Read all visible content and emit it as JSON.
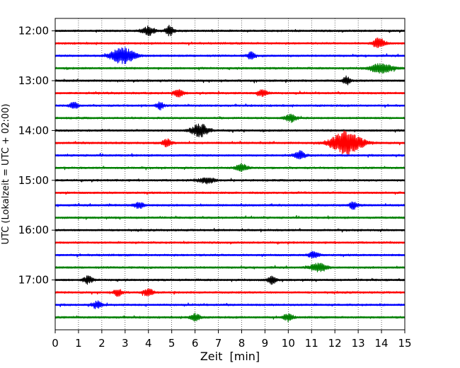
{
  "chart_data": {
    "type": "line",
    "chart_kind": "seismic helicorder",
    "xlabel": "Zeit  [min]",
    "ylabel": "UTC (Lokalzeit = UTC + 02:00)",
    "xlim": [
      0,
      15
    ],
    "x_ticks": [
      0,
      1,
      2,
      3,
      4,
      5,
      6,
      7,
      8,
      9,
      10,
      11,
      12,
      13,
      14,
      15
    ],
    "ylim_hours": [
      11.75,
      18.0
    ],
    "y_ticks": [
      {
        "label": "12:00",
        "hour": 12.0
      },
      {
        "label": "13:00",
        "hour": 13.0
      },
      {
        "label": "14:00",
        "hour": 14.0
      },
      {
        "label": "15:00",
        "hour": 15.0
      },
      {
        "label": "16:00",
        "hour": 16.0
      },
      {
        "label": "17:00",
        "hour": 17.0
      }
    ],
    "grid": "vertical dotted at each minute",
    "color_cycle": [
      "#000000",
      "#ff0000",
      "#0000ff",
      "#008000"
    ],
    "trace_interval_minutes": 15,
    "trace_start_times": [
      "12:00",
      "12:15",
      "12:30",
      "12:45",
      "13:00",
      "13:15",
      "13:30",
      "13:45",
      "14:00",
      "14:15",
      "14:30",
      "14:45",
      "15:00",
      "15:15",
      "15:30",
      "15:45",
      "16:00",
      "16:15",
      "16:30",
      "16:45",
      "17:00",
      "17:15",
      "17:30",
      "17:45"
    ],
    "events": [
      {
        "trace": 0,
        "minute": 4.0,
        "amplitude": 0.35,
        "width": 0.4
      },
      {
        "trace": 0,
        "minute": 4.9,
        "amplitude": 0.4,
        "width": 0.25
      },
      {
        "trace": 1,
        "minute": 13.9,
        "amplitude": 0.45,
        "width": 0.35
      },
      {
        "trace": 2,
        "minute": 2.9,
        "amplitude": 0.7,
        "width": 0.7
      },
      {
        "trace": 2,
        "minute": 8.4,
        "amplitude": 0.3,
        "width": 0.25
      },
      {
        "trace": 3,
        "minute": 14.0,
        "amplitude": 0.4,
        "width": 0.7
      },
      {
        "trace": 4,
        "minute": 12.5,
        "amplitude": 0.4,
        "width": 0.2
      },
      {
        "trace": 5,
        "minute": 5.3,
        "amplitude": 0.3,
        "width": 0.3
      },
      {
        "trace": 5,
        "minute": 8.9,
        "amplitude": 0.3,
        "width": 0.3
      },
      {
        "trace": 6,
        "minute": 0.8,
        "amplitude": 0.3,
        "width": 0.25
      },
      {
        "trace": 6,
        "minute": 4.5,
        "amplitude": 0.3,
        "width": 0.25
      },
      {
        "trace": 7,
        "minute": 10.1,
        "amplitude": 0.35,
        "width": 0.35
      },
      {
        "trace": 8,
        "minute": 6.2,
        "amplitude": 0.55,
        "width": 0.5
      },
      {
        "trace": 9,
        "minute": 12.5,
        "amplitude": 1.0,
        "width": 0.9
      },
      {
        "trace": 9,
        "minute": 4.8,
        "amplitude": 0.3,
        "width": 0.3
      },
      {
        "trace": 10,
        "minute": 10.5,
        "amplitude": 0.35,
        "width": 0.3
      },
      {
        "trace": 11,
        "minute": 8.0,
        "amplitude": 0.35,
        "width": 0.35
      },
      {
        "trace": 12,
        "minute": 6.5,
        "amplitude": 0.25,
        "width": 0.5
      },
      {
        "trace": 14,
        "minute": 3.6,
        "amplitude": 0.3,
        "width": 0.3
      },
      {
        "trace": 14,
        "minute": 12.8,
        "amplitude": 0.3,
        "width": 0.25
      },
      {
        "trace": 18,
        "minute": 11.1,
        "amplitude": 0.3,
        "width": 0.3
      },
      {
        "trace": 19,
        "minute": 11.3,
        "amplitude": 0.35,
        "width": 0.5
      },
      {
        "trace": 20,
        "minute": 1.4,
        "amplitude": 0.3,
        "width": 0.3
      },
      {
        "trace": 20,
        "minute": 9.3,
        "amplitude": 0.35,
        "width": 0.25
      },
      {
        "trace": 21,
        "minute": 4.0,
        "amplitude": 0.3,
        "width": 0.3
      },
      {
        "trace": 21,
        "minute": 2.7,
        "amplitude": 0.3,
        "width": 0.25
      },
      {
        "trace": 22,
        "minute": 1.8,
        "amplitude": 0.3,
        "width": 0.3
      },
      {
        "trace": 23,
        "minute": 6.0,
        "amplitude": 0.3,
        "width": 0.3
      },
      {
        "trace": 23,
        "minute": 10.0,
        "amplitude": 0.3,
        "width": 0.3
      }
    ]
  }
}
